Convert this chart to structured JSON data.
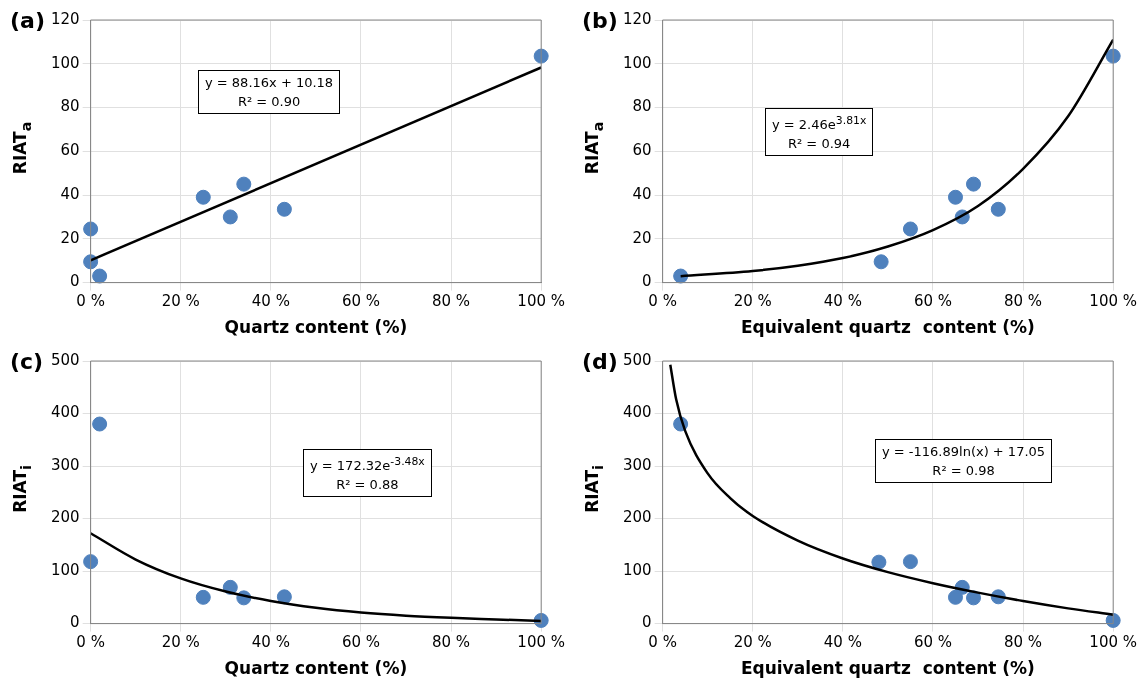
{
  "chart_data": [
    {
      "type": "scatter",
      "title": "(a)",
      "xlabel": "Quartz content (%)",
      "ylabel": "RIAT$_{a}$",
      "xlim": [
        0,
        100
      ],
      "ylim": [
        0,
        120
      ],
      "xticks": [
        {
          "value": 0,
          "label": "0 %"
        },
        {
          "value": 20,
          "label": "20 %"
        },
        {
          "value": 40,
          "label": "40 %"
        },
        {
          "value": 60,
          "label": "60 %"
        },
        {
          "value": 80,
          "label": "80 %"
        },
        {
          "value": 100,
          "label": "100 %"
        }
      ],
      "yticks": [
        0,
        20,
        40,
        60,
        80,
        100,
        120
      ],
      "grid": true,
      "legend": false,
      "marker": "circle",
      "annotations": [
        "y = 88.16x + 10.18",
        "R² = 0.90"
      ],
      "series": [
        {
          "color": "#4f81bd",
          "x": [
            0,
            0,
            2,
            25,
            31,
            34,
            43,
            100
          ],
          "values": [
            24.5,
            9.5,
            3,
            39,
            30,
            45,
            33.5,
            103.5
          ]
        },
        {
          "type": "line",
          "color": "#000000",
          "marker": "none",
          "x": [
            0,
            100
          ],
          "values": [
            10.2,
            98.3
          ]
        }
      ]
    },
    {
      "type": "scatter",
      "title": "(b)",
      "xlabel": "Equivalent quartz  content (%)",
      "ylabel": "RIAT$_{a}$",
      "xlim": [
        0,
        100
      ],
      "ylim": [
        0,
        120
      ],
      "xticks": [
        {
          "value": 0,
          "label": "0 %"
        },
        {
          "value": 20,
          "label": "20 %"
        },
        {
          "value": 40,
          "label": "40 %"
        },
        {
          "value": 60,
          "label": "60 %"
        },
        {
          "value": 80,
          "label": "80 %"
        },
        {
          "value": 100,
          "label": "100 %"
        }
      ],
      "yticks": [
        0,
        20,
        40,
        60,
        80,
        100,
        120
      ],
      "grid": true,
      "legend": false,
      "marker": "circle",
      "annotations": [
        "y = 2.46e$^{3.81x}$",
        "R² = 0.94"
      ],
      "series": [
        {
          "color": "#4f81bd",
          "x": [
            4,
            48.5,
            55,
            65,
            66.5,
            69,
            74.5,
            100
          ],
          "values": [
            3,
            9.5,
            24.5,
            39,
            30,
            45,
            33.5,
            103.5
          ]
        },
        {
          "type": "line",
          "color": "#000000",
          "marker": "none",
          "x": [
            4,
            20,
            30,
            40,
            50,
            60,
            70,
            80,
            90,
            100
          ],
          "values": [
            2.9,
            5.3,
            7.7,
            11.2,
            16.5,
            24,
            35,
            52,
            76,
            111
          ]
        }
      ]
    },
    {
      "type": "scatter",
      "title": "(c)",
      "xlabel": "Quartz content (%)",
      "ylabel": "RIAT$_{i}$",
      "xlim": [
        0,
        100
      ],
      "ylim": [
        0,
        500
      ],
      "xticks": [
        {
          "value": 0,
          "label": "0 %"
        },
        {
          "value": 20,
          "label": "20 %"
        },
        {
          "value": 40,
          "label": "40 %"
        },
        {
          "value": 60,
          "label": "60 %"
        },
        {
          "value": 80,
          "label": "80 %"
        },
        {
          "value": 100,
          "label": "100 %"
        }
      ],
      "yticks": [
        0,
        100,
        200,
        300,
        400,
        500
      ],
      "grid": true,
      "legend": false,
      "marker": "circle",
      "annotations": [
        "y = 172.32e$^{-3.48x}$",
        "R² = 0.88"
      ],
      "series": [
        {
          "color": "#4f81bd",
          "x": [
            0,
            2,
            25,
            31,
            34,
            43,
            100
          ],
          "values": [
            118,
            380,
            50,
            69,
            49,
            51,
            6
          ]
        },
        {
          "type": "line",
          "color": "#000000",
          "marker": "none",
          "x": [
            0,
            10,
            20,
            30,
            40,
            50,
            60,
            70,
            80,
            90,
            100
          ],
          "values": [
            172,
            122,
            86,
            61,
            43,
            30,
            21,
            15,
            11,
            8,
            5
          ]
        }
      ]
    },
    {
      "type": "scatter",
      "title": "(d)",
      "xlabel": "Equivalent quartz  content (%)",
      "ylabel": "RIAT$_{i}$",
      "xlim": [
        0,
        100
      ],
      "ylim": [
        0,
        500
      ],
      "xticks": [
        {
          "value": 0,
          "label": "0 %"
        },
        {
          "value": 20,
          "label": "20 %"
        },
        {
          "value": 40,
          "label": "40 %"
        },
        {
          "value": 60,
          "label": "60 %"
        },
        {
          "value": 80,
          "label": "80 %"
        },
        {
          "value": 100,
          "label": "100 %"
        }
      ],
      "yticks": [
        0,
        100,
        200,
        300,
        400,
        500
      ],
      "grid": true,
      "legend": false,
      "marker": "circle",
      "annotations": [
        "y = -116.89ln(x) + 17.05",
        "R² = 0.98"
      ],
      "series": [
        {
          "color": "#4f81bd",
          "x": [
            4,
            48,
            55,
            65,
            66.5,
            69,
            74.5,
            100
          ],
          "values": [
            380,
            117,
            118,
            50,
            69,
            49,
            51,
            6
          ]
        },
        {
          "type": "line",
          "color": "#000000",
          "marker": "none",
          "x": [
            1.7,
            3,
            5,
            10,
            15,
            20,
            30,
            40,
            50,
            60,
            70,
            80,
            90,
            100
          ],
          "values": [
            493,
            427,
            367,
            286,
            239,
            205,
            158,
            124,
            98,
            77,
            59,
            43,
            29,
            17
          ]
        }
      ]
    }
  ]
}
